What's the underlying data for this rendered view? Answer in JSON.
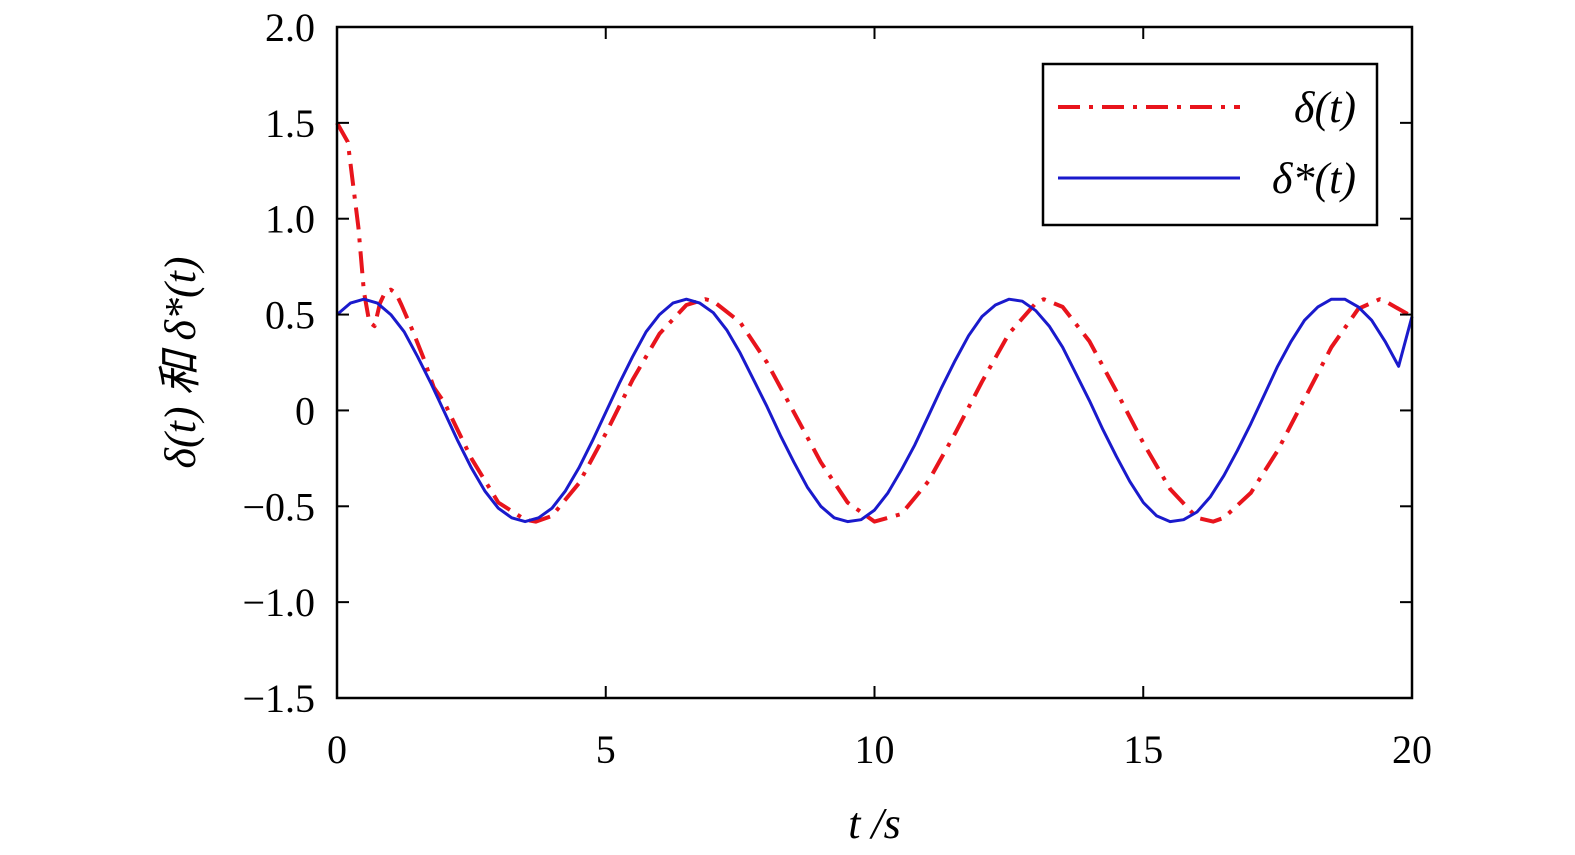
{
  "chart_data": {
    "type": "line",
    "title": "",
    "xlabel": "t /s",
    "ylabel": "δ(t) 和 δ*(t)",
    "xlim": [
      0,
      20
    ],
    "ylim": [
      -1.5,
      2.0
    ],
    "xticks": [
      0,
      5,
      10,
      15,
      20
    ],
    "xtick_labels": [
      "0",
      "5",
      "10",
      "15",
      "20"
    ],
    "yticks": [
      -1.5,
      -1.0,
      -0.5,
      0,
      0.5,
      1.0,
      1.5,
      2.0
    ],
    "ytick_labels": [
      "−1.5",
      "−1.0",
      "−0.5",
      "0",
      "0.5",
      "1.0",
      "1.5",
      "2.0"
    ],
    "grid": false,
    "legend_position": "top-right",
    "series": [
      {
        "name": "δ(t)",
        "color": "#e8141c",
        "style": "dash-dot",
        "x": [
          0,
          0.2,
          0.4,
          0.5,
          0.6,
          0.7,
          0.8,
          0.9,
          1.0,
          1.1,
          1.2,
          1.4,
          1.6,
          1.8,
          2.0,
          2.5,
          3.0,
          3.5,
          3.7,
          4.0,
          4.5,
          5.0,
          5.5,
          6.0,
          6.5,
          6.85,
          7.0,
          7.5,
          8.0,
          8.5,
          9.0,
          9.5,
          10.0,
          10.5,
          11.0,
          11.5,
          12.0,
          12.5,
          13.0,
          13.15,
          13.5,
          14.0,
          14.5,
          15.0,
          15.5,
          16.0,
          16.3,
          16.5,
          17.0,
          17.5,
          18.0,
          18.5,
          19.0,
          19.4,
          19.5,
          20.0
        ],
        "y": [
          1.5,
          1.4,
          0.95,
          0.62,
          0.46,
          0.44,
          0.56,
          0.62,
          0.63,
          0.61,
          0.55,
          0.42,
          0.28,
          0.12,
          0.04,
          -0.25,
          -0.48,
          -0.57,
          -0.58,
          -0.55,
          -0.38,
          -0.12,
          0.16,
          0.4,
          0.55,
          0.58,
          0.57,
          0.46,
          0.25,
          -0.01,
          -0.27,
          -0.48,
          -0.58,
          -0.54,
          -0.37,
          -0.12,
          0.15,
          0.4,
          0.56,
          0.58,
          0.54,
          0.36,
          0.1,
          -0.17,
          -0.41,
          -0.56,
          -0.58,
          -0.56,
          -0.43,
          -0.21,
          0.06,
          0.33,
          0.53,
          0.58,
          0.57,
          0.49
        ]
      },
      {
        "name": "δ*(t)",
        "color": "#1a1acc",
        "style": "solid",
        "x": [
          0,
          0.25,
          0.5,
          0.75,
          1.0,
          1.25,
          1.5,
          1.75,
          2.0,
          2.25,
          2.5,
          2.75,
          3.0,
          3.25,
          3.5,
          3.75,
          4.0,
          4.25,
          4.5,
          4.75,
          5.0,
          5.25,
          5.5,
          5.75,
          6.0,
          6.25,
          6.5,
          6.75,
          7.0,
          7.25,
          7.5,
          7.75,
          8.0,
          8.25,
          8.5,
          8.75,
          9.0,
          9.25,
          9.5,
          9.75,
          10.0,
          10.25,
          10.5,
          10.75,
          11.0,
          11.25,
          11.5,
          11.75,
          12.0,
          12.25,
          12.5,
          12.75,
          13.0,
          13.25,
          13.5,
          13.75,
          14.0,
          14.25,
          14.5,
          14.75,
          15.0,
          15.25,
          15.5,
          15.75,
          16.0,
          16.25,
          16.5,
          16.75,
          17.0,
          17.25,
          17.5,
          17.75,
          18.0,
          18.25,
          18.5,
          18.75,
          19.0,
          19.25,
          19.5,
          19.75,
          20.0
        ],
        "y": [
          0.5,
          0.56,
          0.58,
          0.56,
          0.5,
          0.41,
          0.28,
          0.14,
          -0.01,
          -0.16,
          -0.3,
          -0.42,
          -0.51,
          -0.56,
          -0.58,
          -0.56,
          -0.51,
          -0.42,
          -0.3,
          -0.16,
          -0.01,
          0.14,
          0.28,
          0.41,
          0.5,
          0.56,
          0.58,
          0.56,
          0.51,
          0.42,
          0.3,
          0.16,
          0.02,
          -0.13,
          -0.27,
          -0.4,
          -0.5,
          -0.56,
          -0.58,
          -0.57,
          -0.52,
          -0.43,
          -0.31,
          -0.18,
          -0.03,
          0.12,
          0.26,
          0.39,
          0.49,
          0.55,
          0.58,
          0.57,
          0.52,
          0.44,
          0.33,
          0.19,
          0.05,
          -0.1,
          -0.24,
          -0.37,
          -0.48,
          -0.55,
          -0.58,
          -0.57,
          -0.53,
          -0.45,
          -0.34,
          -0.21,
          -0.07,
          0.08,
          0.23,
          0.36,
          0.47,
          0.54,
          0.58,
          0.58,
          0.54,
          0.47,
          0.36,
          0.23,
          0.49
        ]
      }
    ]
  }
}
